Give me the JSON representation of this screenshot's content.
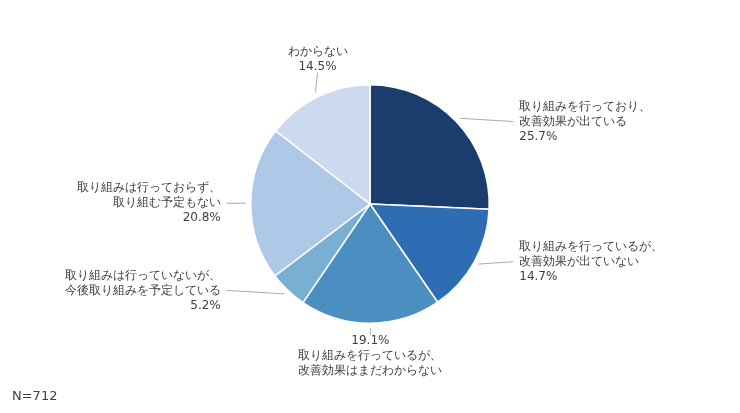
{
  "chart_data": {
    "type": "pie",
    "categories": [
      "取り組みを行っており、\n改善効果が出ている",
      "取り組みを行っているが、\n改善効果が出ていない",
      "取り組みを行っているが、\n改善効果はまだわからない",
      "取り組みは行っていないが、\n今後取り組みを予定している",
      "取り組みは行っておらず、\n取り組む予定もない",
      "わからない"
    ],
    "values": [
      25.7,
      14.7,
      19.1,
      5.2,
      20.8,
      14.5
    ],
    "value_labels": [
      "25.7%",
      "14.7%",
      "19.1%",
      "5.2%",
      "20.8%",
      "14.5%"
    ],
    "colors": [
      "#1b3d6e",
      "#2e6db4",
      "#4a8fc0",
      "#7aafd4",
      "#b0c8e8",
      "#ccdaf0"
    ],
    "data_labels": true,
    "annotation": "N=712"
  }
}
